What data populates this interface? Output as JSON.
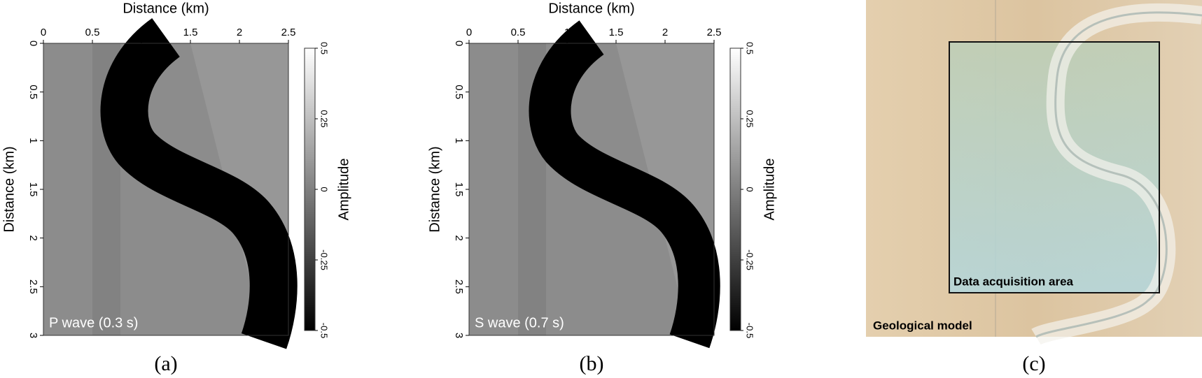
{
  "chart_data": [
    {
      "type": "heatmap",
      "caption": "(a)",
      "x_label": "Distance (km)",
      "y_label": "Distance (km)",
      "annotation": "P wave (0.3 s)",
      "xlim": [
        0,
        2.5
      ],
      "xticks": [
        0,
        0.5,
        1,
        1.5,
        2,
        2.5
      ],
      "ylim": [
        3,
        0
      ],
      "yticks": [
        0,
        0.5,
        1,
        1.5,
        2,
        2.5,
        3
      ],
      "colorbar": {
        "label": "Amplitude",
        "lim": [
          -0.5,
          0.5
        ],
        "ticks": [
          0.5,
          0.25,
          0,
          -0.25,
          -0.5
        ],
        "colors": [
          "#000000",
          "#ffffff"
        ]
      }
    },
    {
      "type": "heatmap",
      "caption": "(b)",
      "x_label": "Distance (km)",
      "y_label": "Distance (km)",
      "annotation": "S wave (0.7 s)",
      "xlim": [
        0,
        2.5
      ],
      "xticks": [
        0,
        0.5,
        1,
        1.5,
        2,
        2.5
      ],
      "ylim": [
        3,
        0
      ],
      "yticks": [
        0,
        0.5,
        1,
        1.5,
        2,
        2.5,
        3
      ],
      "colorbar": {
        "label": "Amplitude",
        "lim": [
          -0.5,
          0.5
        ],
        "ticks": [
          0.5,
          0.25,
          0,
          -0.25,
          -0.5
        ],
        "colors": [
          "#000000",
          "#ffffff"
        ]
      }
    },
    {
      "type": "image",
      "caption": "(c)",
      "box_label": "Data acquisition area",
      "model_label": "Geological model"
    }
  ]
}
